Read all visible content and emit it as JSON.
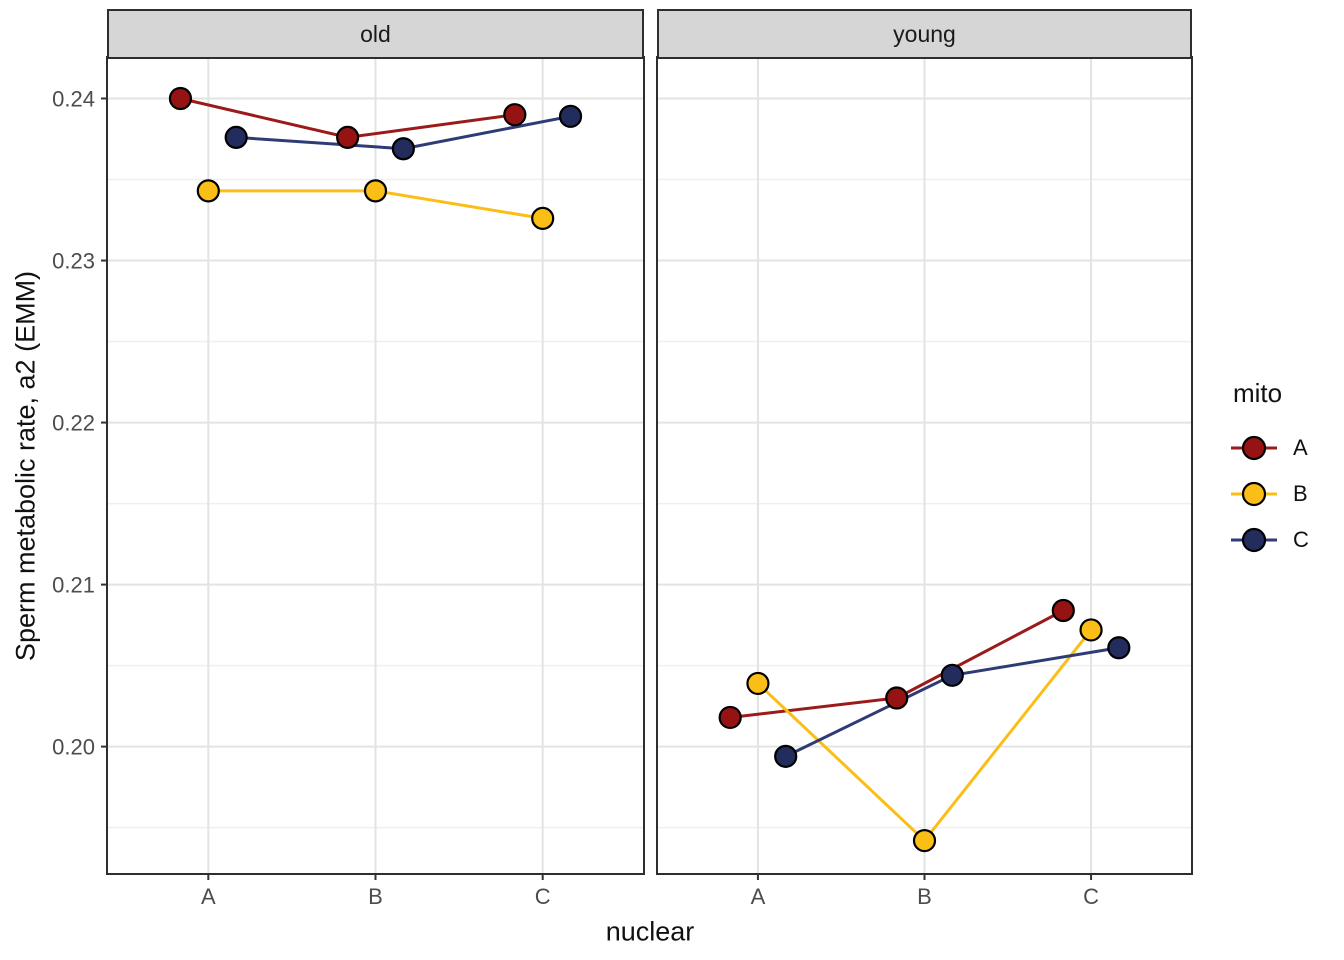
{
  "axes": {
    "x": {
      "title": "nuclear",
      "categories": [
        "A",
        "B",
        "C"
      ]
    },
    "y": {
      "title": "Sperm metabolic rate, a2 (EMM)",
      "ticks": [
        {
          "value": 0.24,
          "label": "0.24"
        },
        {
          "value": 0.23,
          "label": "0.23"
        },
        {
          "value": 0.22,
          "label": "0.22"
        },
        {
          "value": 0.21,
          "label": "0.21"
        },
        {
          "value": 0.2,
          "label": "0.20"
        }
      ]
    }
  },
  "legend": {
    "title": "mito",
    "position": "right",
    "entries": [
      "A",
      "B",
      "C"
    ]
  },
  "style": {
    "background": "#FFFFFF",
    "panel_bg": "#FFFFFF",
    "panel_border": "#2E2E2E",
    "strip_bg": "#D6D6D6",
    "strip_text": "#1A1A1A",
    "grid_major": "#E3E3E3",
    "grid_minor": "#EFEFEF",
    "axis_tick": "#333333",
    "tick_label": "#4D4D4D",
    "point_stroke": "#000000"
  },
  "chart_data": {
    "type": "line",
    "facets": [
      "old",
      "young"
    ],
    "categories": [
      "A",
      "B",
      "C"
    ],
    "xlabel": "nuclear",
    "ylabel": "Sperm metabolic rate, a2 (EMM)",
    "ylim": [
      0.1922,
      0.2425
    ],
    "y_major_ticks": [
      0.2,
      0.21,
      0.22,
      0.23,
      0.24
    ],
    "y_minor_ticks": [
      0.195,
      0.205,
      0.215,
      0.225,
      0.235
    ],
    "grid": true,
    "legend_title": "mito",
    "legend_position": "right",
    "dodge_width": 0.5,
    "series": [
      {
        "name": "A",
        "color": "#951313",
        "line_color": "#9B1A1A",
        "values": {
          "old": [
            0.24,
            0.2376,
            0.239
          ],
          "young": [
            0.2018,
            0.203,
            0.2084
          ]
        }
      },
      {
        "name": "B",
        "color": "#FBBE16",
        "line_color": "#FBBE16",
        "values": {
          "old": [
            0.2343,
            0.2343,
            0.2326
          ],
          "young": [
            0.2039,
            0.1942,
            0.2072
          ]
        }
      },
      {
        "name": "C",
        "color": "#222C5D",
        "line_color": "#2E3B74",
        "values": {
          "old": [
            0.2376,
            0.2369,
            0.2389
          ],
          "young": [
            0.1994,
            0.2044,
            0.2061
          ]
        }
      }
    ]
  }
}
